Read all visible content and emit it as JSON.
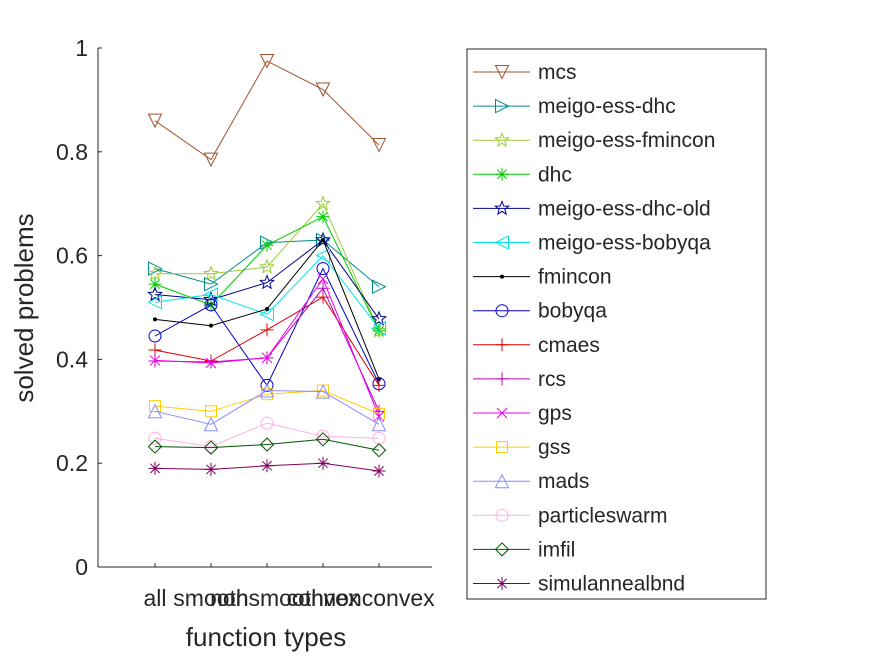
{
  "chart_data": {
    "type": "line",
    "title": "",
    "xlabel": "function types",
    "ylabel": "solved problems",
    "categories": [
      "all",
      "smooth",
      "nonsmooth",
      "convex",
      "nonconvex"
    ],
    "ylim": [
      0,
      1
    ],
    "yticks": [
      "0",
      "0.2",
      "0.4",
      "0.6",
      "0.8",
      "1"
    ],
    "grid": false,
    "legend_position": "right",
    "series": [
      {
        "name": "mcs",
        "color": "#a0522d",
        "marker": "triangle-down",
        "values": [
          0.86,
          0.785,
          0.975,
          0.92,
          0.813
        ]
      },
      {
        "name": "meigo-ess-dhc",
        "color": "#008b8b",
        "marker": "triangle-right",
        "values": [
          0.575,
          0.545,
          0.625,
          0.63,
          0.54
        ]
      },
      {
        "name": "meigo-ess-fmincon",
        "color": "#9acd32",
        "marker": "star5",
        "values": [
          0.565,
          0.565,
          0.578,
          0.7,
          0.455
        ]
      },
      {
        "name": "dhc",
        "color": "#00cc00",
        "marker": "asterisk",
        "values": [
          0.545,
          0.505,
          0.62,
          0.675,
          0.455
        ]
      },
      {
        "name": "meigo-ess-dhc-old",
        "color": "#00008b",
        "marker": "star5",
        "values": [
          0.525,
          0.515,
          0.548,
          0.63,
          0.478
        ]
      },
      {
        "name": "meigo-ess-bobyqa",
        "color": "#00e5e5",
        "marker": "triangle-left",
        "values": [
          0.51,
          0.525,
          0.487,
          0.6,
          0.46
        ]
      },
      {
        "name": "fmincon",
        "color": "#000000",
        "marker": "dot",
        "values": [
          0.477,
          0.465,
          0.497,
          0.63,
          0.362
        ]
      },
      {
        "name": "bobyqa",
        "color": "#0000cd",
        "marker": "circle",
        "values": [
          0.445,
          0.505,
          0.35,
          0.575,
          0.353
        ]
      },
      {
        "name": "cmaes",
        "color": "#dd0000",
        "marker": "plus",
        "values": [
          0.418,
          0.397,
          0.457,
          0.52,
          0.35
        ]
      },
      {
        "name": "rcs",
        "color": "#c000c0",
        "marker": "plus",
        "values": [
          0.397,
          0.395,
          0.403,
          0.537,
          0.3
        ]
      },
      {
        "name": "gps",
        "color": "#ee00ee",
        "marker": "cross",
        "values": [
          0.398,
          0.393,
          0.403,
          0.555,
          0.29
        ]
      },
      {
        "name": "gss",
        "color": "#ffcc00",
        "marker": "square",
        "values": [
          0.31,
          0.3,
          0.333,
          0.34,
          0.295
        ]
      },
      {
        "name": "mads",
        "color": "#8c8cff",
        "marker": "triangle-up",
        "values": [
          0.3,
          0.275,
          0.34,
          0.338,
          0.275
        ]
      },
      {
        "name": "particleswarm",
        "color": "#ffb0e6",
        "marker": "circle",
        "values": [
          0.248,
          0.232,
          0.277,
          0.252,
          0.248
        ]
      },
      {
        "name": "imfil",
        "color": "#005500",
        "marker": "diamond",
        "values": [
          0.232,
          0.23,
          0.236,
          0.246,
          0.225
        ]
      },
      {
        "name": "simulannealbnd",
        "color": "#800060",
        "marker": "asterisk",
        "values": [
          0.19,
          0.188,
          0.195,
          0.2,
          0.185
        ]
      }
    ]
  }
}
